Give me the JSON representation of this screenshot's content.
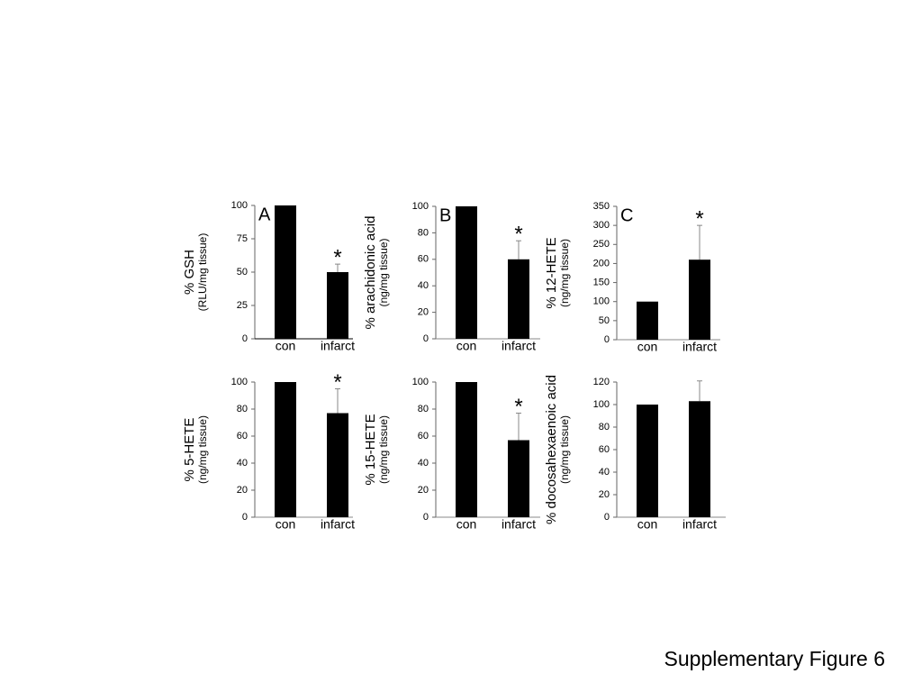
{
  "figure_title": "Supplementary Figure 6",
  "chart_data": [
    {
      "type": "bar",
      "panel": "A",
      "ylabel": "% GSH",
      "ylabel_sub": "(RLU/mg  tissue)",
      "categories": [
        "con",
        "infarct"
      ],
      "values": [
        100,
        50
      ],
      "errors": [
        0,
        6
      ],
      "significance": [
        null,
        "*"
      ],
      "color": "#000000",
      "ylim": [
        0,
        100
      ],
      "yticks": [
        0,
        25,
        50,
        75,
        100
      ],
      "grid": false
    },
    {
      "type": "bar",
      "panel": "B",
      "ylabel": "% arachidonic acid",
      "ylabel_sub": "(ng/mg tissue)",
      "categories": [
        "con",
        "infarct"
      ],
      "values": [
        100,
        60
      ],
      "errors": [
        0,
        14
      ],
      "significance": [
        null,
        "*"
      ],
      "color": "#000000",
      "ylim": [
        0,
        100
      ],
      "yticks": [
        0,
        20,
        40,
        60,
        80,
        100
      ],
      "grid": false
    },
    {
      "type": "bar",
      "panel": "C",
      "ylabel": "% 12-HETE",
      "ylabel_sub": "(ng/mg tissue)",
      "categories": [
        "con",
        "infarct"
      ],
      "values": [
        100,
        210
      ],
      "errors": [
        0,
        90
      ],
      "significance": [
        null,
        "*"
      ],
      "color": "#000000",
      "ylim": [
        0,
        350
      ],
      "yticks": [
        0,
        50,
        100,
        150,
        200,
        250,
        300,
        350
      ],
      "grid": false
    },
    {
      "type": "bar",
      "ylabel": "% 5-HETE",
      "ylabel_sub": "(ng/mg tissue)",
      "categories": [
        "con",
        "infarct"
      ],
      "values": [
        100,
        77
      ],
      "errors": [
        0,
        18
      ],
      "significance": [
        null,
        "*"
      ],
      "color": "#000000",
      "ylim": [
        0,
        100
      ],
      "yticks": [
        0,
        20,
        40,
        60,
        80,
        100
      ],
      "grid": false
    },
    {
      "type": "bar",
      "ylabel": "% 15-HETE",
      "ylabel_sub": "(ng/mg tissue)",
      "categories": [
        "con",
        "infarct"
      ],
      "values": [
        100,
        57
      ],
      "errors": [
        0,
        20
      ],
      "significance": [
        null,
        "*"
      ],
      "color": "#000000",
      "ylim": [
        0,
        100
      ],
      "yticks": [
        0,
        20,
        40,
        60,
        80,
        100
      ],
      "grid": false
    },
    {
      "type": "bar",
      "ylabel": "% docosahexaenoic acid",
      "ylabel_sub": "(ng/mg tissue)",
      "categories": [
        "con",
        "infarct"
      ],
      "values": [
        100,
        103
      ],
      "errors": [
        0,
        18
      ],
      "significance": [
        null,
        null
      ],
      "color": "#000000",
      "ylim": [
        0,
        120
      ],
      "yticks": [
        0,
        20,
        40,
        60,
        80,
        100,
        120
      ],
      "grid": false
    }
  ]
}
